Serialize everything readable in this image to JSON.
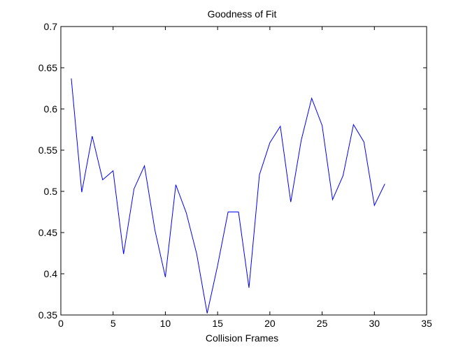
{
  "chart_data": {
    "type": "line",
    "title": "Goodness of Fit",
    "xlabel": "Collision Frames",
    "ylabel": "",
    "xlim": [
      0,
      35
    ],
    "ylim": [
      0.35,
      0.7
    ],
    "xticks": [
      "0",
      "5",
      "10",
      "15",
      "20",
      "25",
      "30",
      "35"
    ],
    "yticks": [
      "0.35",
      "0.4",
      "0.45",
      "0.5",
      "0.55",
      "0.6",
      "0.65",
      "0.7"
    ],
    "grid": false,
    "legend": "none",
    "line_color": "#0000ff",
    "axis_color": "#000000",
    "series": [
      {
        "x": [
          1,
          2,
          3,
          4,
          5,
          6,
          7,
          8,
          9,
          10,
          11,
          12,
          13,
          14,
          15,
          16,
          17,
          18,
          19,
          20,
          21,
          22,
          23,
          24,
          25,
          26,
          27,
          28,
          29,
          30,
          31
        ],
        "values": [
          0.637,
          0.499,
          0.567,
          0.514,
          0.525,
          0.424,
          0.503,
          0.531,
          0.453,
          0.396,
          0.508,
          0.474,
          0.424,
          0.352,
          0.41,
          0.475,
          0.475,
          0.383,
          0.52,
          0.559,
          0.579,
          0.487,
          0.562,
          0.613,
          0.58,
          0.49,
          0.519,
          0.581,
          0.56,
          0.483,
          0.509
        ]
      }
    ]
  }
}
